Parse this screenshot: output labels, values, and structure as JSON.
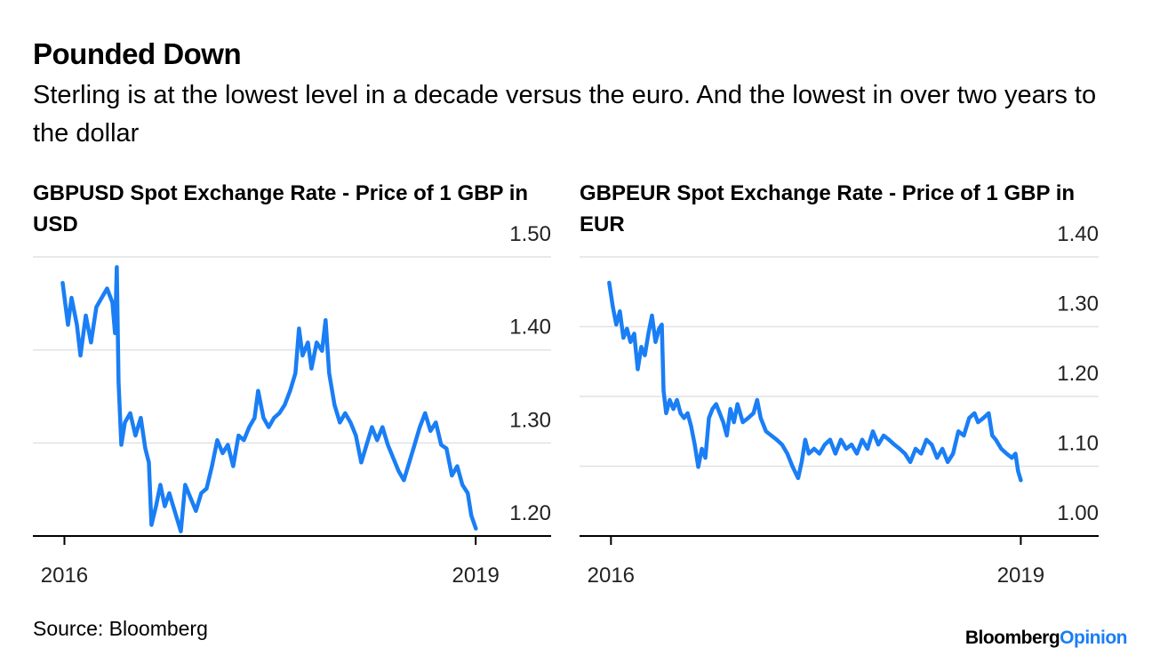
{
  "title": "Pounded Down",
  "subtitle": "Sterling is at the lowest level in a decade versus the euro. And the lowest in over two years to the dollar",
  "source": "Source: Bloomberg",
  "brand_name": "Bloomberg",
  "brand_section": "Opinion",
  "chart_data": [
    {
      "type": "line",
      "title": "GBPUSD Spot Exchange Rate - Price of 1 GBP in USD",
      "color": "#1a7ef5",
      "xlim": [
        2015.77,
        2019.55
      ],
      "xticks": [
        2016,
        2019
      ],
      "ylim": [
        1.2,
        1.5
      ],
      "yticks": [
        {
          "value": 1.2,
          "label": "1.20"
        },
        {
          "value": 1.3,
          "label": "1.30"
        },
        {
          "value": 1.4,
          "label": "1.40"
        },
        {
          "value": 1.5,
          "label": "1.50"
        }
      ],
      "grid": true,
      "x": [
        2015.987,
        2016.026,
        2016.052,
        2016.091,
        2016.117,
        2016.156,
        2016.194,
        2016.233,
        2016.272,
        2016.311,
        2016.35,
        2016.369,
        2016.382,
        2016.395,
        2016.415,
        2016.441,
        2016.48,
        2016.518,
        2016.557,
        2016.59,
        2016.616,
        2016.635,
        2016.668,
        2016.7,
        2016.732,
        2016.765,
        2016.804,
        2016.849,
        2016.881,
        2016.92,
        2016.959,
        2016.998,
        2017.037,
        2017.076,
        2017.115,
        2017.154,
        2017.192,
        2017.231,
        2017.27,
        2017.309,
        2017.348,
        2017.387,
        2017.413,
        2017.452,
        2017.49,
        2017.529,
        2017.568,
        2017.607,
        2017.646,
        2017.685,
        2017.711,
        2017.737,
        2017.776,
        2017.802,
        2017.84,
        2017.879,
        2017.905,
        2017.931,
        2017.97,
        2018.009,
        2018.048,
        2018.087,
        2018.126,
        2018.165,
        2018.204,
        2018.243,
        2018.281,
        2018.32,
        2018.359,
        2018.398,
        2018.437,
        2018.476,
        2018.515,
        2018.554,
        2018.592,
        2018.631,
        2018.67,
        2018.709,
        2018.748,
        2018.787,
        2018.826,
        2018.865,
        2018.903,
        2018.942,
        2018.968,
        2019.001
      ],
      "values": [
        1.472,
        1.427,
        1.456,
        1.427,
        1.394,
        1.437,
        1.408,
        1.446,
        1.456,
        1.466,
        1.451,
        1.418,
        1.489,
        1.365,
        1.298,
        1.322,
        1.332,
        1.308,
        1.327,
        1.294,
        1.279,
        1.212,
        1.232,
        1.255,
        1.232,
        1.246,
        1.227,
        1.205,
        1.255,
        1.241,
        1.227,
        1.246,
        1.251,
        1.275,
        1.303,
        1.289,
        1.298,
        1.275,
        1.308,
        1.303,
        1.317,
        1.327,
        1.356,
        1.327,
        1.317,
        1.327,
        1.332,
        1.341,
        1.356,
        1.375,
        1.423,
        1.394,
        1.408,
        1.38,
        1.408,
        1.399,
        1.432,
        1.375,
        1.341,
        1.322,
        1.332,
        1.322,
        1.308,
        1.279,
        1.298,
        1.317,
        1.303,
        1.317,
        1.298,
        1.284,
        1.27,
        1.26,
        1.279,
        1.298,
        1.317,
        1.332,
        1.313,
        1.322,
        1.298,
        1.294,
        1.265,
        1.275,
        1.255,
        1.246,
        1.222,
        1.208
      ]
    },
    {
      "type": "line",
      "title": "GBPEUR Spot Exchange Rate - Price of 1 GBP in EUR",
      "color": "#1a7ef5",
      "xlim": [
        2015.77,
        2019.57
      ],
      "xticks": [
        2016,
        2019
      ],
      "ylim": [
        1.0,
        1.4
      ],
      "yticks": [
        {
          "value": 1.0,
          "label": "1.00"
        },
        {
          "value": 1.1,
          "label": "1.10"
        },
        {
          "value": 1.2,
          "label": "1.20"
        },
        {
          "value": 1.3,
          "label": "1.30"
        },
        {
          "value": 1.4,
          "label": "1.40"
        }
      ],
      "grid": true,
      "x": [
        2015.987,
        2016.013,
        2016.039,
        2016.065,
        2016.091,
        2016.117,
        2016.143,
        2016.17,
        2016.196,
        2016.222,
        2016.248,
        2016.274,
        2016.3,
        2016.326,
        2016.352,
        2016.372,
        2016.385,
        2016.404,
        2016.43,
        2016.457,
        2016.483,
        2016.509,
        2016.535,
        2016.561,
        2016.587,
        2016.613,
        2016.639,
        2016.665,
        2016.691,
        2016.717,
        2016.743,
        2016.77,
        2016.796,
        2016.822,
        2016.848,
        2016.874,
        2016.9,
        2016.926,
        2016.965,
        2017.004,
        2017.043,
        2017.07,
        2017.096,
        2017.135,
        2017.174,
        2017.213,
        2017.252,
        2017.291,
        2017.33,
        2017.37,
        2017.396,
        2017.422,
        2017.448,
        2017.487,
        2017.526,
        2017.565,
        2017.604,
        2017.643,
        2017.683,
        2017.722,
        2017.761,
        2017.8,
        2017.839,
        2017.878,
        2017.917,
        2017.957,
        2017.996,
        2018.035,
        2018.074,
        2018.113,
        2018.152,
        2018.191,
        2018.23,
        2018.27,
        2018.309,
        2018.348,
        2018.387,
        2018.426,
        2018.465,
        2018.504,
        2018.543,
        2018.583,
        2018.622,
        2018.661,
        2018.687,
        2018.726,
        2018.765,
        2018.791,
        2018.817,
        2018.857,
        2018.896,
        2018.935,
        2018.961,
        2018.98,
        2019.0
      ],
      "values": [
        1.363,
        1.329,
        1.303,
        1.322,
        1.284,
        1.297,
        1.278,
        1.29,
        1.239,
        1.271,
        1.259,
        1.29,
        1.316,
        1.278,
        1.297,
        1.303,
        1.208,
        1.176,
        1.195,
        1.182,
        1.195,
        1.176,
        1.169,
        1.176,
        1.157,
        1.131,
        1.099,
        1.125,
        1.112,
        1.169,
        1.182,
        1.189,
        1.176,
        1.163,
        1.144,
        1.182,
        1.163,
        1.189,
        1.163,
        1.169,
        1.176,
        1.195,
        1.169,
        1.15,
        1.144,
        1.138,
        1.131,
        1.118,
        1.099,
        1.083,
        1.106,
        1.138,
        1.118,
        1.125,
        1.118,
        1.131,
        1.138,
        1.118,
        1.138,
        1.125,
        1.131,
        1.118,
        1.138,
        1.125,
        1.15,
        1.131,
        1.144,
        1.138,
        1.131,
        1.125,
        1.118,
        1.106,
        1.125,
        1.118,
        1.138,
        1.131,
        1.112,
        1.125,
        1.106,
        1.118,
        1.15,
        1.144,
        1.169,
        1.176,
        1.163,
        1.169,
        1.176,
        1.144,
        1.138,
        1.125,
        1.118,
        1.112,
        1.118,
        1.093,
        1.08
      ]
    }
  ]
}
